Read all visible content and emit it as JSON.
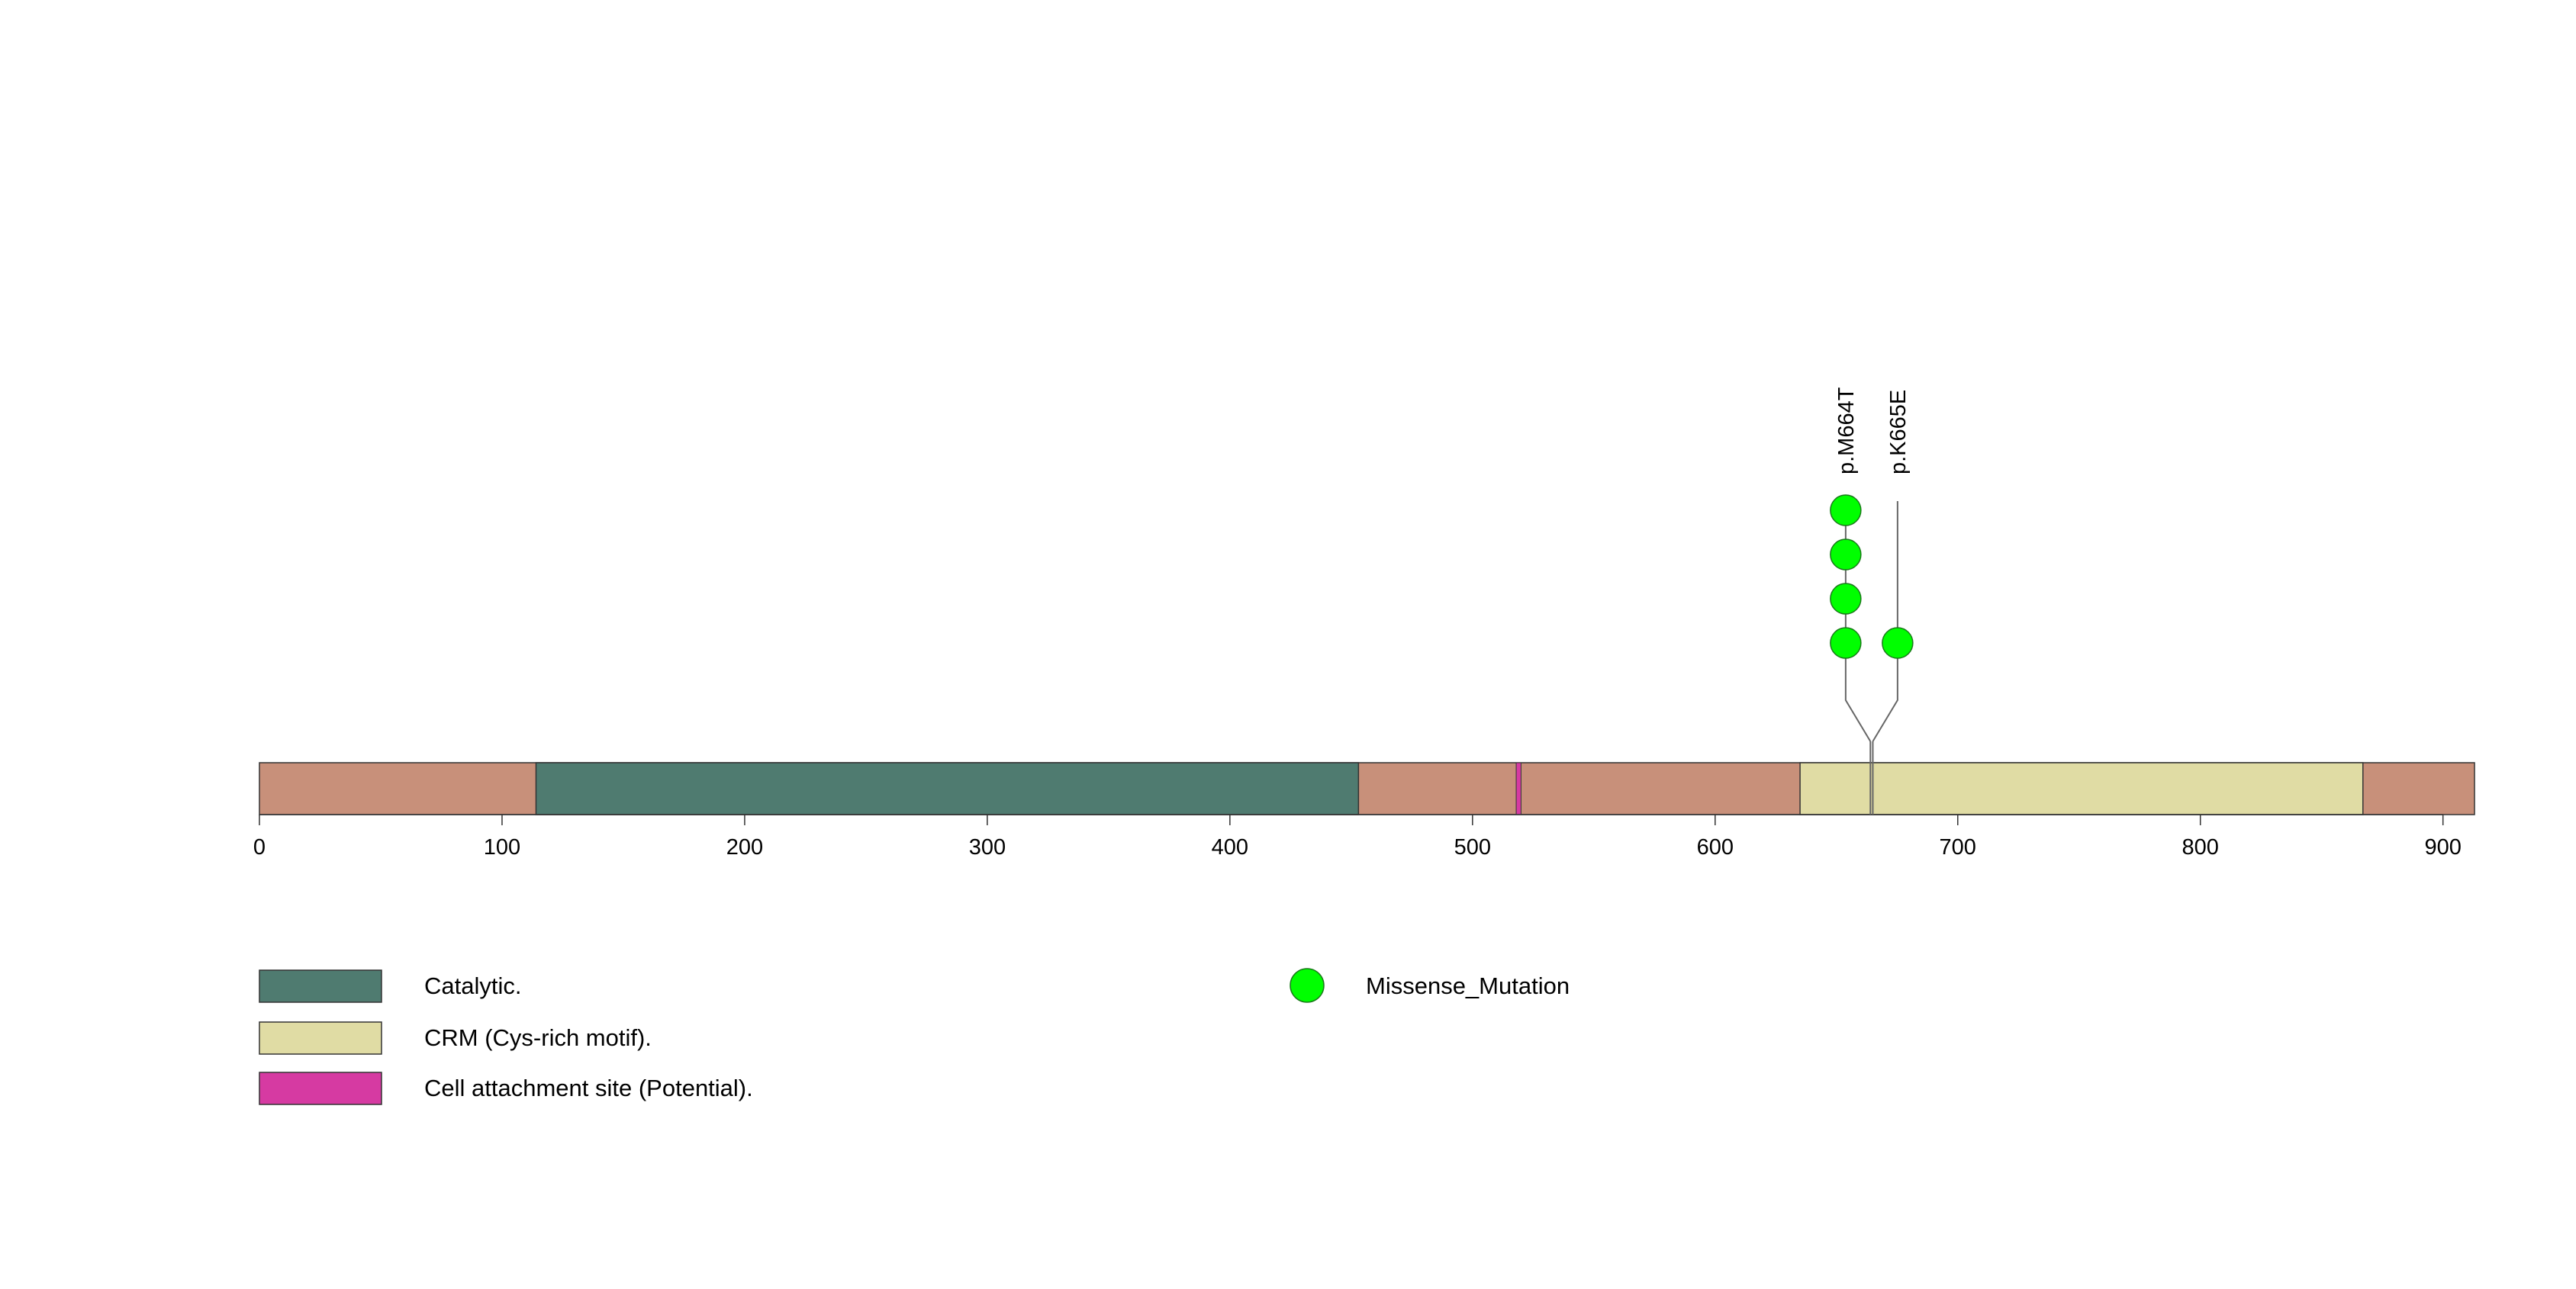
{
  "protein_length": 913,
  "axis": {
    "min": 0,
    "max": 913,
    "ticks": [
      0,
      100,
      200,
      300,
      400,
      500,
      600,
      700,
      800,
      900
    ]
  },
  "colors": {
    "backbone": "#c8907a",
    "catalytic": "#4f7b70",
    "crm": "#e0dca4",
    "cell_attachment": "#d63aa2",
    "missense": "#00ff00",
    "outline": "#333333",
    "stem": "#666666"
  },
  "domains": [
    {
      "name": "Catalytic.",
      "start": 114,
      "end": 453,
      "color_key": "catalytic"
    },
    {
      "name": "Cell attachment site (Potential).",
      "start": 518,
      "end": 520,
      "color_key": "cell_attachment"
    },
    {
      "name": "CRM (Cys-rich motif).",
      "start": 635,
      "end": 867,
      "color_key": "crm"
    }
  ],
  "mutations": [
    {
      "label": "p.M664T",
      "position": 664,
      "count": 4,
      "type": "Missense_Mutation"
    },
    {
      "label": "p.K665E",
      "position": 665,
      "count": 1,
      "type": "Missense_Mutation"
    }
  ],
  "legend": {
    "domains": [
      {
        "label": "Catalytic.",
        "color_key": "catalytic"
      },
      {
        "label": "CRM (Cys-rich motif).",
        "color_key": "crm"
      },
      {
        "label": "Cell attachment site (Potential).",
        "color_key": "cell_attachment"
      }
    ],
    "mutation_types": [
      {
        "label": "Missense_Mutation",
        "color_key": "missense"
      }
    ]
  }
}
